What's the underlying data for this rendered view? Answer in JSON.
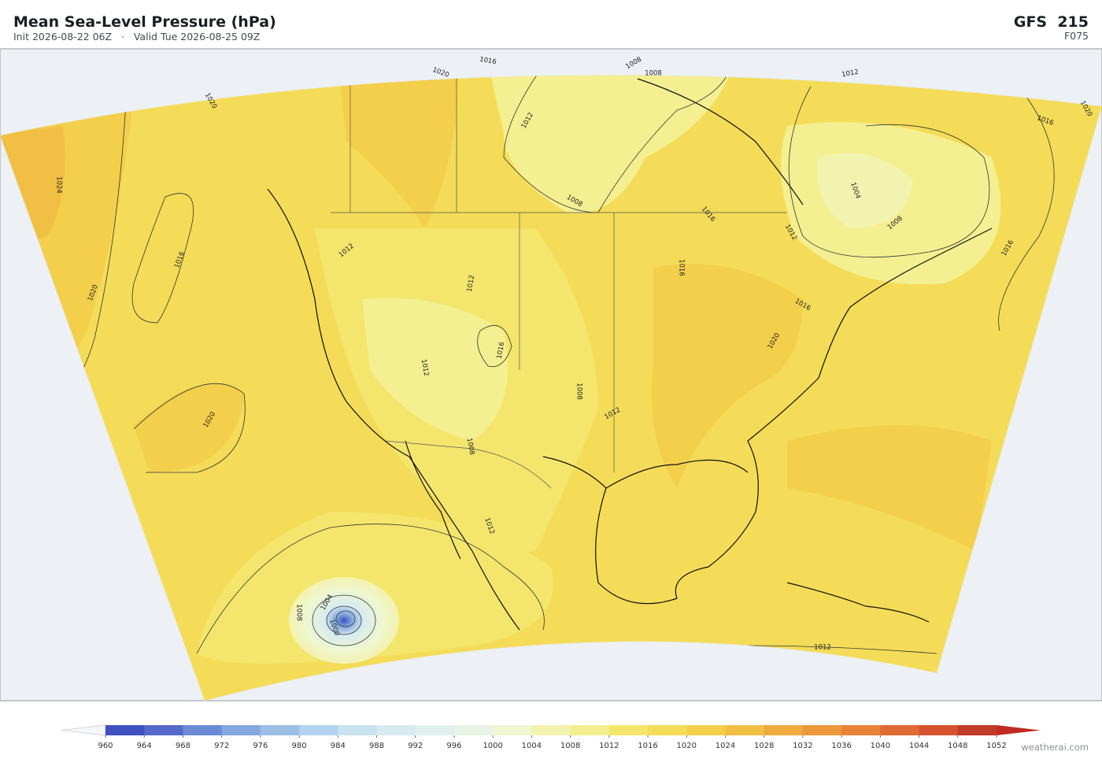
{
  "header": {
    "title": "Mean Sea-Level Pressure  (hPa)",
    "subtitle": "Init 2026-08-22 06Z   ·   Valid Tue 2026-08-25 09Z",
    "model": "GFS  215",
    "forecast_hour": "F075"
  },
  "contour_labels": [
    1020,
    1016,
    1008,
    1008,
    1012,
    1020,
    1016,
    1020,
    1024,
    1016,
    1020,
    1012,
    1008,
    1004,
    1008,
    1012,
    1016,
    1016,
    1012,
    1012,
    1016,
    1016,
    1016,
    1020,
    1012,
    1008,
    1012,
    1020,
    1008,
    1012,
    1008,
    1004,
    1000,
    1012
  ],
  "colorbar": {
    "ticks": [
      960,
      964,
      968,
      972,
      976,
      980,
      984,
      988,
      992,
      996,
      1000,
      1004,
      1008,
      1012,
      1016,
      1020,
      1024,
      1028,
      1032,
      1036,
      1040,
      1044,
      1048,
      1052
    ],
    "colors": [
      "#3f51c0",
      "#5569cc",
      "#6b8bd6",
      "#84a8de",
      "#9dbfe6",
      "#b3d3ee",
      "#c9e3f0",
      "#d7ebf0",
      "#e2f1ee",
      "#e9f4e6",
      "#eff6d0",
      "#f3f3b0",
      "#f4ef90",
      "#f4e66c",
      "#f4dc58",
      "#f3cf4c",
      "#f2bf45",
      "#f0ab3e",
      "#ed983a",
      "#e98337",
      "#e06a33",
      "#d4522e",
      "#c23a28"
    ],
    "under_color": "#f5f7fa",
    "over_color": "#c02a22"
  },
  "footer": {
    "brand": "weatherai.com"
  }
}
